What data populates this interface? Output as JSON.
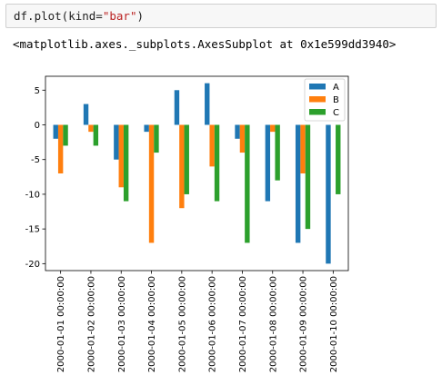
{
  "cell": {
    "code_prefix": "df.plot(kind=",
    "code_string": "\"bar\"",
    "code_suffix": ")",
    "output": "<matplotlib.axes._subplots.AxesSubplot at 0x1e599dd3940>"
  },
  "chart_data": {
    "type": "bar",
    "categories": [
      "2000-01-01 00:00:00",
      "2000-01-02 00:00:00",
      "2000-01-03 00:00:00",
      "2000-01-04 00:00:00",
      "2000-01-05 00:00:00",
      "2000-01-06 00:00:00",
      "2000-01-07 00:00:00",
      "2000-01-08 00:00:00",
      "2000-01-09 00:00:00",
      "2000-01-10 00:00:00"
    ],
    "series": [
      {
        "name": "A",
        "color": "#1f77b4",
        "values": [
          -2,
          3,
          -5,
          -1,
          5,
          6,
          -2,
          -11,
          -17,
          -20
        ]
      },
      {
        "name": "B",
        "color": "#ff7f0e",
        "values": [
          -7,
          -1,
          -9,
          -17,
          -12,
          -6,
          -4,
          -1,
          -7,
          0
        ]
      },
      {
        "name": "C",
        "color": "#2ca02c",
        "values": [
          -3,
          -3,
          -11,
          -4,
          -10,
          -11,
          -17,
          -8,
          -15,
          -10
        ]
      }
    ],
    "ylim": [
      -21,
      7
    ],
    "yticks": [
      5,
      0,
      -5,
      -10,
      -15,
      -20
    ],
    "legend_position": "upper right",
    "grid": false
  }
}
